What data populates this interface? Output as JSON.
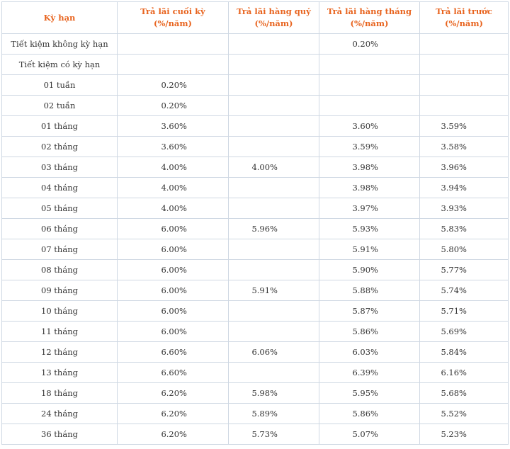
{
  "table": {
    "headers": [
      "Kỳ hạn",
      "Trả lãi cuối  kỳ (%/năm)",
      "Trả lãi hàng quý (%/năm)",
      "Trả lãi hàng tháng (%/năm)",
      "Trả lãi trước (%/năm)"
    ],
    "rows": [
      [
        "Tiết kiệm không kỳ hạn",
        "",
        "",
        "0.20%",
        ""
      ],
      [
        "Tiết kiệm có kỳ hạn",
        "",
        "",
        "",
        ""
      ],
      [
        "01 tuần",
        "0.20%",
        "",
        "",
        ""
      ],
      [
        "02 tuần",
        "0.20%",
        "",
        "",
        ""
      ],
      [
        "01 tháng",
        "3.60%",
        "",
        "3.60%",
        "3.59%"
      ],
      [
        "02 tháng",
        "3.60%",
        "",
        "3.59%",
        "3.58%"
      ],
      [
        "03 tháng",
        "4.00%",
        "4.00%",
        "3.98%",
        "3.96%"
      ],
      [
        "04 tháng",
        "4.00%",
        "",
        "3.98%",
        "3.94%"
      ],
      [
        "05 tháng",
        "4.00%",
        "",
        "3.97%",
        "3.93%"
      ],
      [
        "06 tháng",
        "6.00%",
        "5.96%",
        "5.93%",
        "5.83%"
      ],
      [
        "07 tháng",
        "6.00%",
        "",
        "5.91%",
        "5.80%"
      ],
      [
        "08 tháng",
        "6.00%",
        "",
        "5.90%",
        "5.77%"
      ],
      [
        "09 tháng",
        "6.00%",
        "5.91%",
        "5.88%",
        "5.74%"
      ],
      [
        "10 tháng",
        "6.00%",
        "",
        "5.87%",
        "5.71%"
      ],
      [
        "11 tháng",
        "6.00%",
        "",
        "5.86%",
        "5.69%"
      ],
      [
        "12 tháng",
        "6.60%",
        "6.06%",
        "6.03%",
        "5.84%"
      ],
      [
        "13 tháng",
        "6.60%",
        "",
        "6.39%",
        "6.16%"
      ],
      [
        "18 tháng",
        "6.20%",
        "5.98%",
        "5.95%",
        "5.68%"
      ],
      [
        "24 tháng",
        "6.20%",
        "5.89%",
        "5.86%",
        "5.52%"
      ],
      [
        "36 tháng",
        "6.20%",
        "5.73%",
        "5.07%",
        "5.23%"
      ]
    ]
  },
  "colors": {
    "header_text": "#e8641f",
    "border": "#cfd8e3",
    "body_text": "#333333"
  }
}
